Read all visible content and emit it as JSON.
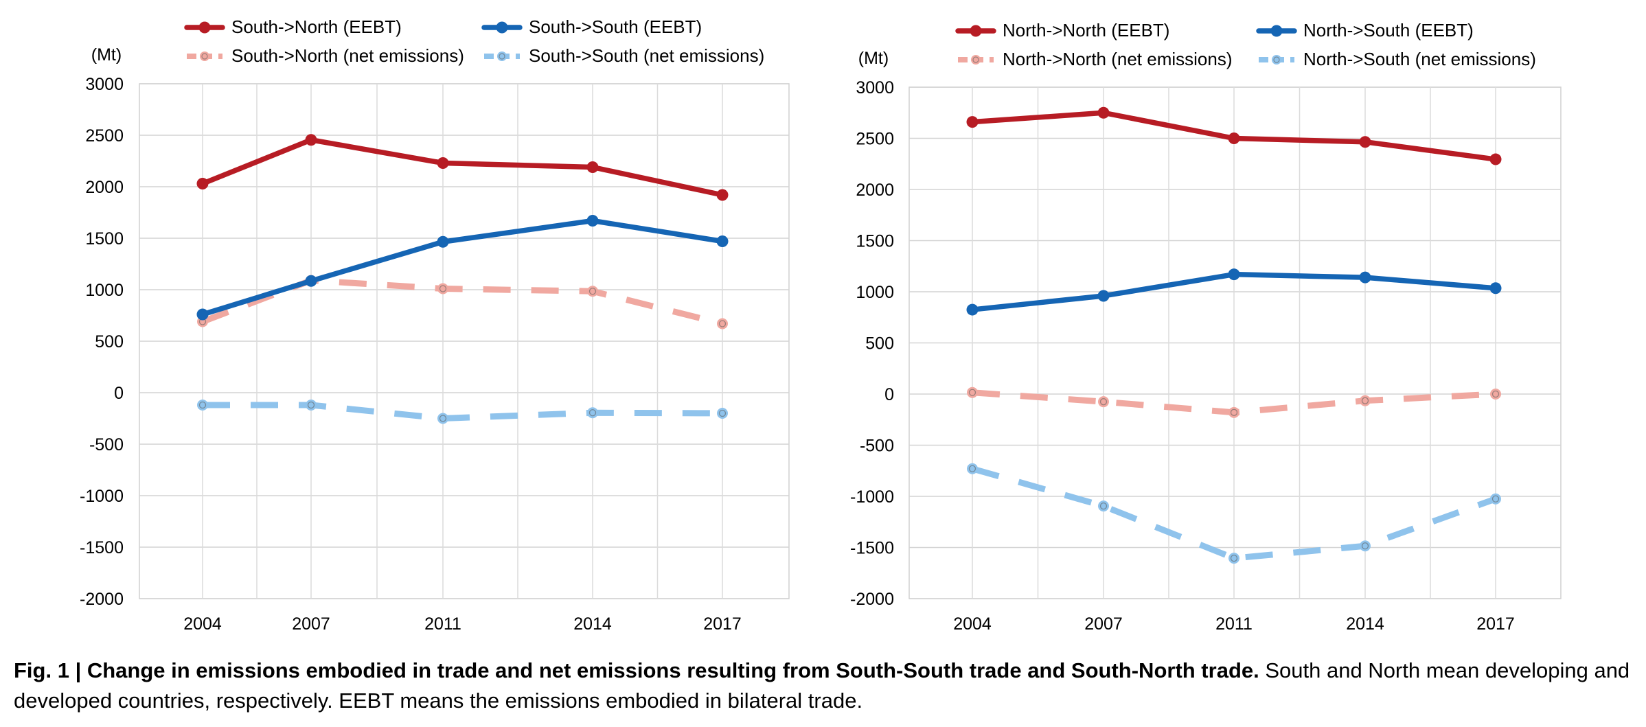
{
  "chart_data": [
    {
      "type": "line",
      "x": [
        "2004",
        "2007",
        "2011",
        "2014",
        "2017"
      ],
      "yunit": "(Mt)",
      "ylim": [
        -2000,
        3000
      ],
      "yticks": [
        "3000",
        "2500",
        "2000",
        "1500",
        "1000",
        "500",
        "0",
        "-500",
        "-1000",
        "-1500",
        "-2000"
      ],
      "grid": true,
      "legend_placement": "top",
      "series": [
        {
          "name": "South->North (EEBT)",
          "values": [
            2030,
            2455,
            2230,
            2190,
            1920
          ],
          "color": "#b71c24",
          "dashed": false
        },
        {
          "name": "South->South (EEBT)",
          "values": [
            760,
            1085,
            1465,
            1670,
            1470
          ],
          "color": "#1565b4",
          "dashed": false
        },
        {
          "name": "South->North (net emissions)",
          "values": [
            690,
            1090,
            1010,
            985,
            670
          ],
          "color": "#f0a8a0",
          "dashed": true
        },
        {
          "name": "South->South (net emissions)",
          "values": [
            -120,
            -120,
            -250,
            -195,
            -200
          ],
          "color": "#8fc3ec",
          "dashed": true
        }
      ]
    },
    {
      "type": "line",
      "x": [
        "2004",
        "2007",
        "2011",
        "2014",
        "2017"
      ],
      "yunit": "(Mt)",
      "ylim": [
        -2000,
        3000
      ],
      "yticks": [
        "3000",
        "2500",
        "2000",
        "1500",
        "1000",
        "500",
        "0",
        "-500",
        "-1000",
        "-1500",
        "-2000"
      ],
      "grid": true,
      "legend_placement": "top",
      "series": [
        {
          "name": "North->North (EEBT)",
          "values": [
            2660,
            2750,
            2500,
            2465,
            2295
          ],
          "color": "#b71c24",
          "dashed": false
        },
        {
          "name": "North->South (EEBT)",
          "values": [
            825,
            960,
            1170,
            1140,
            1035
          ],
          "color": "#1565b4",
          "dashed": false
        },
        {
          "name": "North->North (net emissions)",
          "values": [
            15,
            -75,
            -180,
            -65,
            0
          ],
          "color": "#f0a8a0",
          "dashed": true
        },
        {
          "name": "North->South (net emissions)",
          "values": [
            -730,
            -1095,
            -1605,
            -1485,
            -1025
          ],
          "color": "#8fc3ec",
          "dashed": true
        }
      ]
    }
  ],
  "caption": {
    "bold": "Fig. 1 | Change in emissions embodied in trade and net emissions resulting from South-South trade and South-North trade.",
    "text": " South and North mean developing and developed countries, respectively. EEBT means the emissions embodied in bilateral trade."
  }
}
